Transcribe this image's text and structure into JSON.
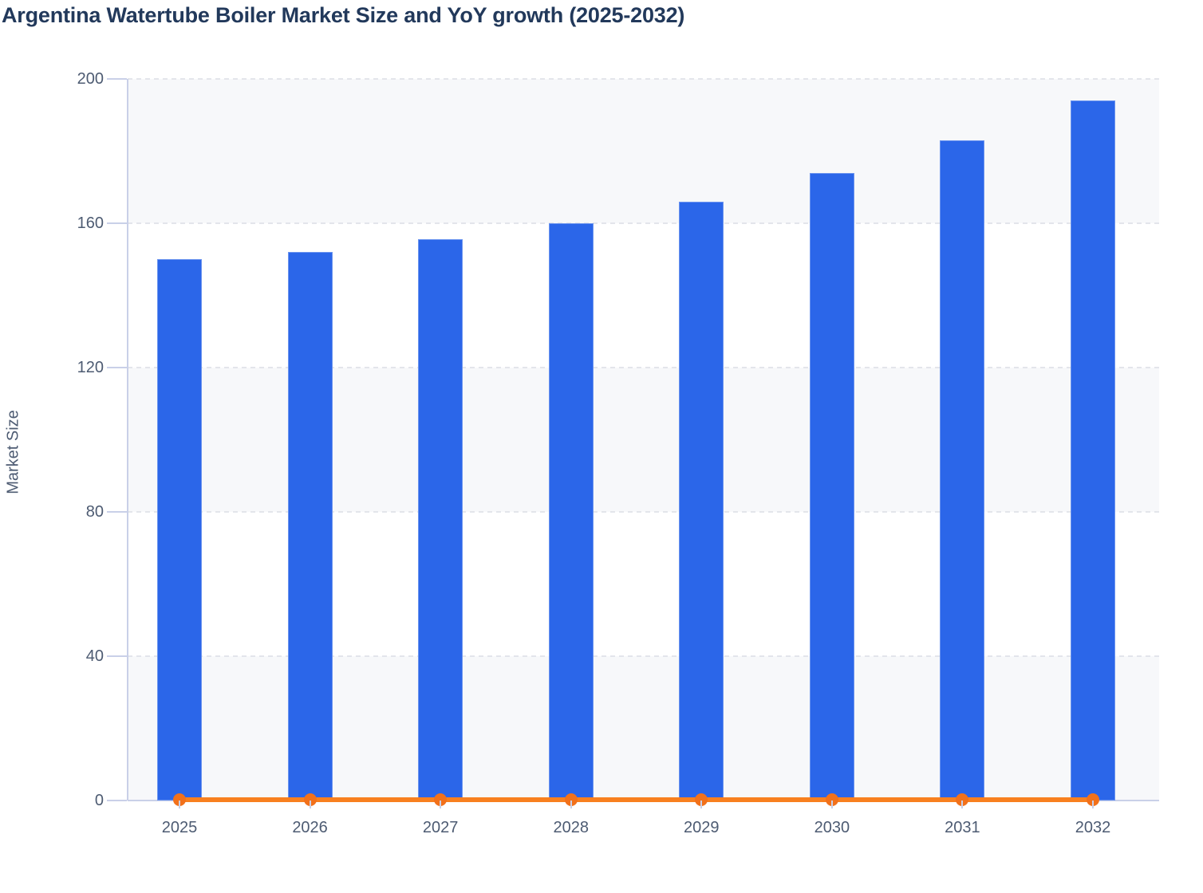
{
  "chart_data": {
    "type": "bar",
    "title": "Argentina Watertube Boiler Market Size and YoY growth (2025-2032)",
    "categories": [
      "2025",
      "2026",
      "2027",
      "2028",
      "2029",
      "2030",
      "2031",
      "2032"
    ],
    "series": [
      {
        "name": "Market Size",
        "type": "bar",
        "color": "#2B66E9",
        "values": [
          150,
          152,
          155.5,
          160,
          166,
          174,
          183,
          194
        ]
      },
      {
        "name": "YoY growth",
        "type": "line",
        "color": "#F8801F",
        "marker_color": "#F2711B",
        "values": [
          0,
          0,
          0,
          0,
          0,
          0,
          0,
          0
        ]
      }
    ],
    "xlabel": "",
    "ylabel": "Market Size",
    "ylim": [
      0,
      200
    ],
    "yticks": [
      0,
      40,
      80,
      120,
      160,
      200
    ],
    "legend_position": "none",
    "grid": "horizontal-dashed",
    "plot_background": "alternating horizontal bands every 40 units starting gray at 0-40"
  },
  "colors": {
    "title_text": "#22395B",
    "axis_label_text": "#4D5B72",
    "bar_fill": "#2B66E9",
    "yoy_line": "#F8801F",
    "yoy_marker": "#F2711B",
    "band_fill": "#F7F8FA",
    "gridline": "#E3E5EB",
    "axis_line": "#C9D0E8"
  }
}
